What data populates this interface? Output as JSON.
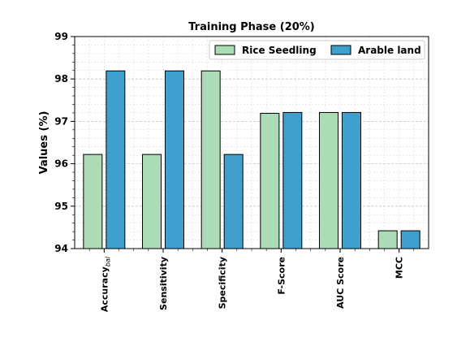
{
  "chart_data": {
    "type": "bar",
    "title": "Training Phase (20%)",
    "xlabel": "",
    "ylabel": "Values (%)",
    "ylim": [
      94,
      99
    ],
    "yticks": [
      94,
      95,
      96,
      97,
      98,
      99
    ],
    "grid": true,
    "legend_position": "top-right",
    "categories": [
      {
        "main": "Accuracy",
        "sub": "bal"
      },
      {
        "main": "Sensitivity",
        "sub": ""
      },
      {
        "main": "Specificity",
        "sub": ""
      },
      {
        "main": "F-Score",
        "sub": ""
      },
      {
        "main": "AUC Score",
        "sub": ""
      },
      {
        "main": "MCC",
        "sub": ""
      }
    ],
    "series": [
      {
        "name": "Rice Seedling",
        "color": "#abdcb5",
        "values": [
          96.22,
          96.22,
          98.19,
          97.19,
          97.21,
          94.42
        ]
      },
      {
        "name": "Arable land",
        "color": "#3fa0cd",
        "values": [
          98.19,
          98.19,
          96.22,
          97.21,
          97.21,
          94.42
        ]
      }
    ]
  }
}
